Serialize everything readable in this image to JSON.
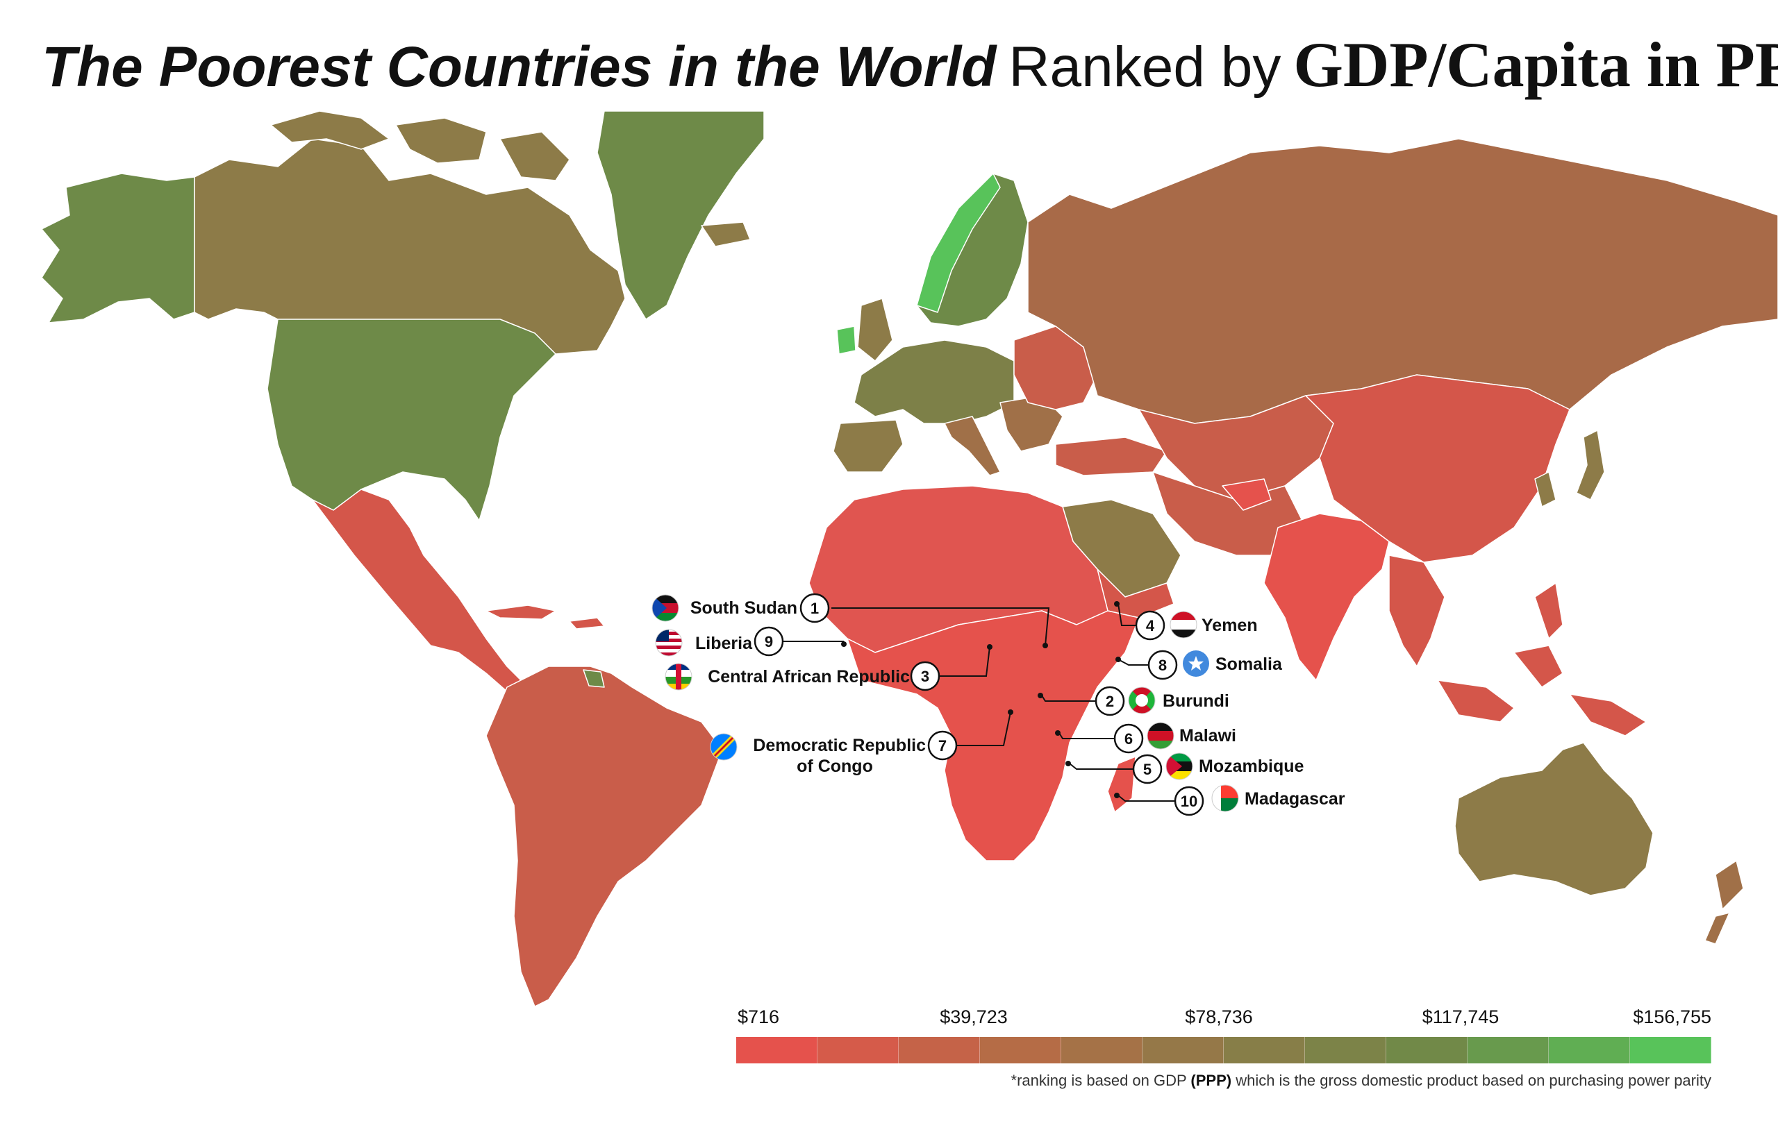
{
  "title": {
    "part1": "The Poorest Countries in the World",
    "part2": "Ranked by",
    "part3": "GDP/Capita in PPP"
  },
  "colors": {
    "low": "#e5524c",
    "mid_low": "#b96a46",
    "mid": "#8d7b48",
    "mid_high": "#6e8a48",
    "high": "#58c35a"
  },
  "annotations": [
    {
      "rank": "1",
      "country": "South Sudan",
      "flag": "south-sudan-flag-icon"
    },
    {
      "rank": "2",
      "country": "Burundi",
      "flag": "burundi-flag-icon"
    },
    {
      "rank": "3",
      "country": "Central African Republic",
      "flag": "central-african-republic-flag-icon"
    },
    {
      "rank": "4",
      "country": "Yemen",
      "flag": "yemen-flag-icon"
    },
    {
      "rank": "5",
      "country": "Mozambique",
      "flag": "mozambique-flag-icon"
    },
    {
      "rank": "6",
      "country": "Malawi",
      "flag": "malawi-flag-icon"
    },
    {
      "rank": "7",
      "country": "Democratic Republic",
      "country_line2": "of Congo",
      "flag": "dr-congo-flag-icon"
    },
    {
      "rank": "8",
      "country": "Somalia",
      "flag": "somalia-flag-icon"
    },
    {
      "rank": "9",
      "country": "Liberia",
      "flag": "liberia-flag-icon"
    },
    {
      "rank": "10",
      "country": "Madagascar",
      "flag": "madagascar-flag-icon"
    }
  ],
  "legend": {
    "ticks": [
      "$716",
      "$39,723",
      "$78,736",
      "$117,745",
      "$156,755"
    ],
    "footnote_pre": "*ranking is based on GDP ",
    "footnote_bold": "(PPP)",
    "footnote_post": " which is the gross domestic product based on purchasing power parity"
  }
}
